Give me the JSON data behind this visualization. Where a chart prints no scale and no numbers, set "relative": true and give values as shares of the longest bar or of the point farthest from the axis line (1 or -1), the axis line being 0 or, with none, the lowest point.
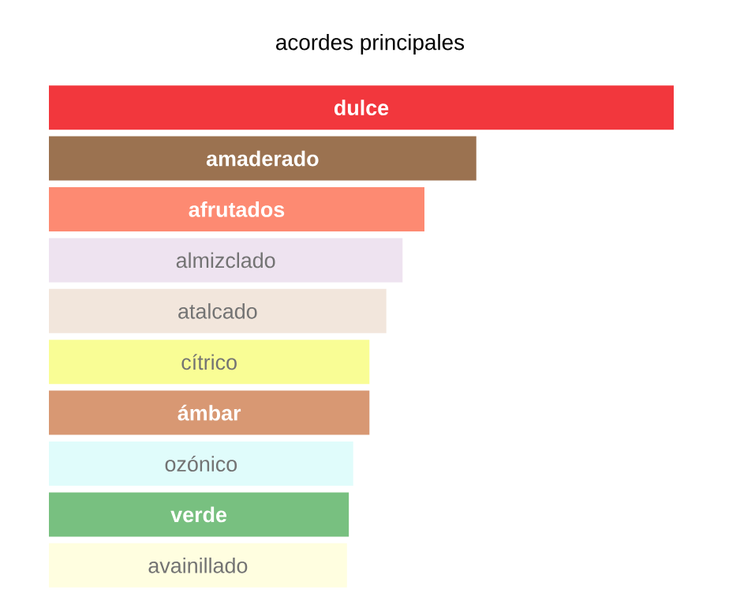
{
  "chart_data": {
    "type": "bar",
    "orientation": "horizontal",
    "relative": true,
    "title": "acordes principales",
    "categories": [
      "dulce",
      "amaderado",
      "afrutados",
      "almizclado",
      "atalcado",
      "cítrico",
      "ámbar",
      "ozónico",
      "verde",
      "avainillado"
    ],
    "values": [
      1,
      0.684,
      0.601,
      0.566,
      0.54,
      0.513,
      0.513,
      0.487,
      0.48,
      0.477
    ],
    "colors": [
      "#f2373d",
      "#9b7250",
      "#fd8a72",
      "#eee3f0",
      "#f2e6dc",
      "#f9fd95",
      "#d89873",
      "#e0fcfb",
      "#78c080",
      "#fffee0"
    ]
  }
}
